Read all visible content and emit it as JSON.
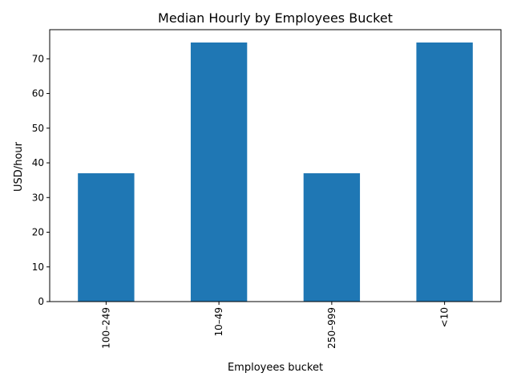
{
  "chart_data": {
    "type": "bar",
    "title": "Median Hourly by Employees Bucket",
    "xlabel": "Employees bucket",
    "ylabel": "USD/hour",
    "categories": [
      "100–249",
      "10–49",
      "250–999",
      "<10"
    ],
    "values": [
      37.0,
      74.7,
      37.0,
      74.7
    ],
    "ylim": [
      0,
      78.4
    ],
    "yticks": [
      0,
      10,
      20,
      30,
      40,
      50,
      60,
      70
    ],
    "grid": false,
    "legend": "none",
    "bar_color": "#1f77b4"
  }
}
